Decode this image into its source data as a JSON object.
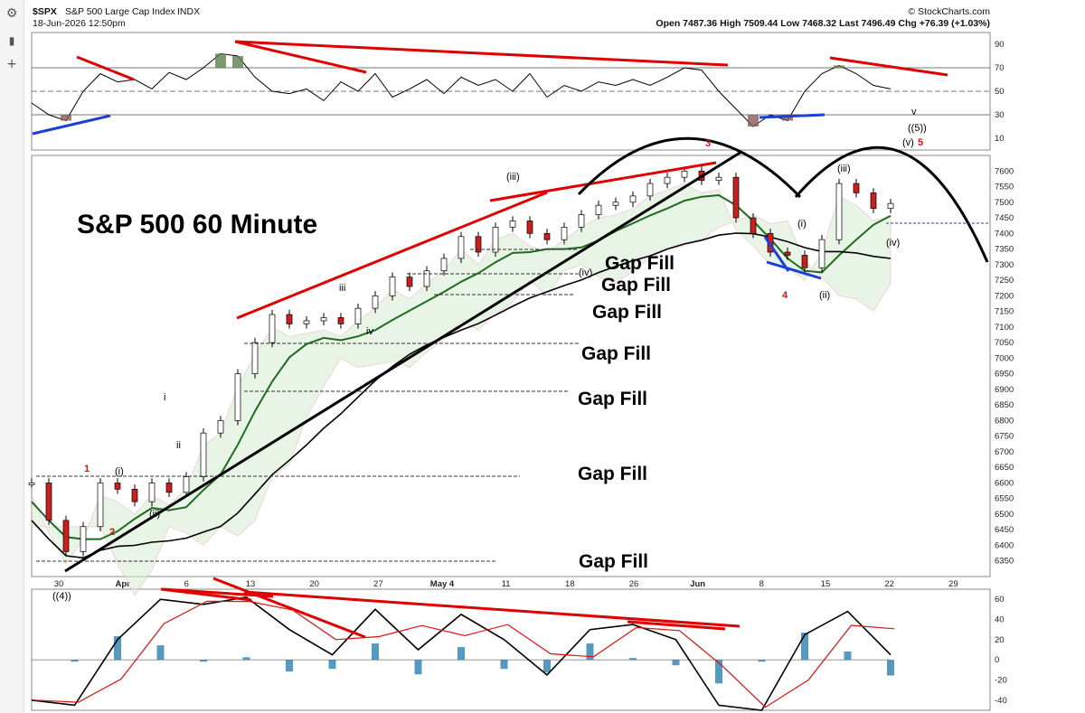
{
  "toolbar": {
    "icons": [
      "gear-icon",
      "scroll-icon",
      "plus-icon"
    ]
  },
  "header": {
    "symbol": "$SPX",
    "name": "S&P 500 Large Cap Index",
    "exchange": "INDX",
    "date": "18-Jun-2026 12:50pm",
    "watermark": "© StockCharts.com",
    "open_label": "Open",
    "open": "7487.36",
    "high_label": "High",
    "high": "7509.44",
    "low_label": "Low",
    "low": "7468.32",
    "last_label": "Last",
    "last": "7496.49",
    "chg_label": "Chg",
    "chg": "+76.39 (+1.03%)"
  },
  "chart_data": [
    {
      "type": "line",
      "panel": "RSI",
      "ylim": [
        0,
        100
      ],
      "yticks": [
        "90",
        "70",
        "50",
        "30",
        "10"
      ],
      "reference_lines": [
        70,
        50,
        30
      ],
      "x": [
        0,
        0.02,
        0.04,
        0.06,
        0.08,
        0.1,
        0.12,
        0.14,
        0.16,
        0.18,
        0.2,
        0.22,
        0.24,
        0.26,
        0.28,
        0.3,
        0.32,
        0.34,
        0.36,
        0.38,
        0.4,
        0.42,
        0.44,
        0.46,
        0.48,
        0.5,
        0.52,
        0.54,
        0.56,
        0.58,
        0.6,
        0.62,
        0.64,
        0.66,
        0.68,
        0.7,
        0.72,
        0.74,
        0.76,
        0.78,
        0.8,
        0.82,
        0.84,
        0.86,
        0.88,
        0.9,
        0.92,
        0.94,
        0.96,
        0.98,
        1.0
      ],
      "values": [
        40,
        30,
        25,
        50,
        65,
        58,
        60,
        52,
        66,
        60,
        70,
        82,
        80,
        62,
        50,
        48,
        52,
        42,
        58,
        50,
        65,
        45,
        52,
        60,
        48,
        62,
        55,
        60,
        50,
        65,
        45,
        55,
        50,
        58,
        55,
        60,
        55,
        62,
        70,
        68,
        50,
        35,
        20,
        30,
        25,
        50,
        65,
        72,
        65,
        55,
        52
      ],
      "color": "#000000"
    },
    {
      "type": "line",
      "panel": "price",
      "title": "S&P 500 60 Minute",
      "ylim": [
        6300,
        7650
      ],
      "yticks": [
        "7600",
        "7550",
        "7500",
        "7450",
        "7400",
        "7350",
        "7300",
        "7250",
        "7200",
        "7150",
        "7100",
        "7050",
        "7000",
        "6950",
        "6900",
        "6850",
        "6800",
        "6750",
        "6700",
        "6650",
        "6600",
        "6550",
        "6500",
        "6450",
        "6400",
        "6350"
      ],
      "xticks": [
        "30",
        "Apr",
        "6",
        "13",
        "20",
        "27",
        "May 4",
        "11",
        "18",
        "26",
        "Jun",
        "8",
        "15",
        "22",
        "29"
      ],
      "x": [
        0,
        0.02,
        0.04,
        0.06,
        0.08,
        0.1,
        0.12,
        0.14,
        0.16,
        0.18,
        0.2,
        0.22,
        0.24,
        0.26,
        0.28,
        0.3,
        0.32,
        0.34,
        0.36,
        0.38,
        0.4,
        0.42,
        0.44,
        0.46,
        0.48,
        0.5,
        0.52,
        0.54,
        0.56,
        0.58,
        0.6,
        0.62,
        0.64,
        0.66,
        0.68,
        0.7,
        0.72,
        0.74,
        0.76,
        0.78,
        0.8,
        0.82,
        0.84,
        0.86,
        0.88,
        0.9,
        0.92,
        0.94,
        0.96,
        0.98,
        1.0
      ],
      "values": [
        6600,
        6480,
        6380,
        6460,
        6600,
        6580,
        6540,
        6600,
        6570,
        6620,
        6760,
        6800,
        6950,
        7050,
        7140,
        7110,
        7120,
        7130,
        7110,
        7160,
        7200,
        7260,
        7230,
        7280,
        7320,
        7390,
        7340,
        7420,
        7440,
        7400,
        7380,
        7420,
        7460,
        7490,
        7500,
        7520,
        7560,
        7580,
        7600,
        7570,
        7580,
        7450,
        7400,
        7340,
        7330,
        7290,
        7380,
        7560,
        7530,
        7480,
        7496
      ],
      "annotations": [
        "Gap Fill",
        "Gap Fill",
        "Gap Fill",
        "Gap Fill",
        "Gap Fill",
        "Gap Fill",
        "Gap Fill"
      ],
      "wave_labels": [
        "1",
        "2",
        "(i)",
        "(ii)",
        "i",
        "ii",
        "iii",
        "iv",
        "(iii)",
        "(iv)",
        "3",
        "4",
        "(i)",
        "(ii)",
        "(iii)",
        "(iv)",
        "(v)",
        "5",
        "v",
        "((5))",
        "((4))"
      ],
      "color": "#000000"
    },
    {
      "type": "line",
      "panel": "MACD",
      "ylim": [
        -50,
        70
      ],
      "yticks": [
        "60",
        "40",
        "20",
        "0",
        "-20",
        "-40"
      ],
      "x": [
        0,
        0.05,
        0.1,
        0.15,
        0.2,
        0.25,
        0.3,
        0.35,
        0.4,
        0.45,
        0.5,
        0.55,
        0.6,
        0.65,
        0.7,
        0.75,
        0.8,
        0.85,
        0.9,
        0.95,
        1.0
      ],
      "values": [
        -40,
        -45,
        20,
        60,
        55,
        62,
        30,
        5,
        50,
        10,
        45,
        20,
        -15,
        30,
        35,
        20,
        -45,
        -50,
        25,
        48,
        5
      ],
      "color": "#000000"
    }
  ]
}
